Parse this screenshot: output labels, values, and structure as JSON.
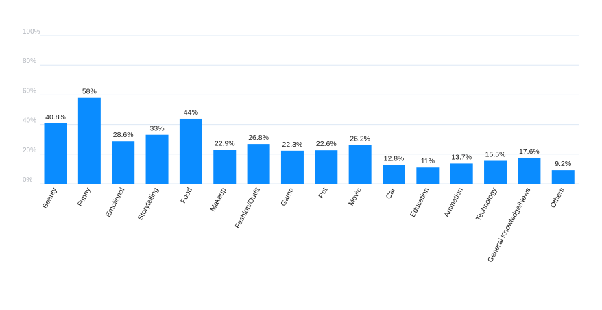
{
  "chart_data": {
    "type": "bar",
    "categories": [
      "Beauty",
      "Funny",
      "Emotional",
      "Storytelling",
      "Food",
      "Makeup",
      "Fashion/Outfit",
      "Game",
      "Pet",
      "Movie",
      "Car",
      "Education",
      "Animation",
      "Technology",
      "General Knowledge/News",
      "Others"
    ],
    "values": [
      40.8,
      58,
      28.6,
      33,
      44,
      22.9,
      26.8,
      22.3,
      22.6,
      26.2,
      12.8,
      11,
      13.7,
      15.5,
      17.6,
      9.2
    ],
    "data_labels": [
      "40.8%",
      "58%",
      "28.6%",
      "33%",
      "44%",
      "22.9%",
      "26.8%",
      "22.3%",
      "22.6%",
      "26.2%",
      "12.8%",
      "11%",
      "13.7%",
      "15.5%",
      "17.6%",
      "9.2%"
    ],
    "y_ticks": [
      0,
      20,
      40,
      60,
      80,
      100
    ],
    "y_tick_labels": [
      "0%",
      "20%",
      "40%",
      "60%",
      "80%",
      "100%"
    ],
    "ylim": [
      0,
      100
    ],
    "grid": true,
    "legend": "none",
    "colors": {
      "bar": "#0a8cff",
      "grid": "#dde8f5",
      "tick_label": "#b4b8bf",
      "label": "#1a1a1a"
    }
  }
}
